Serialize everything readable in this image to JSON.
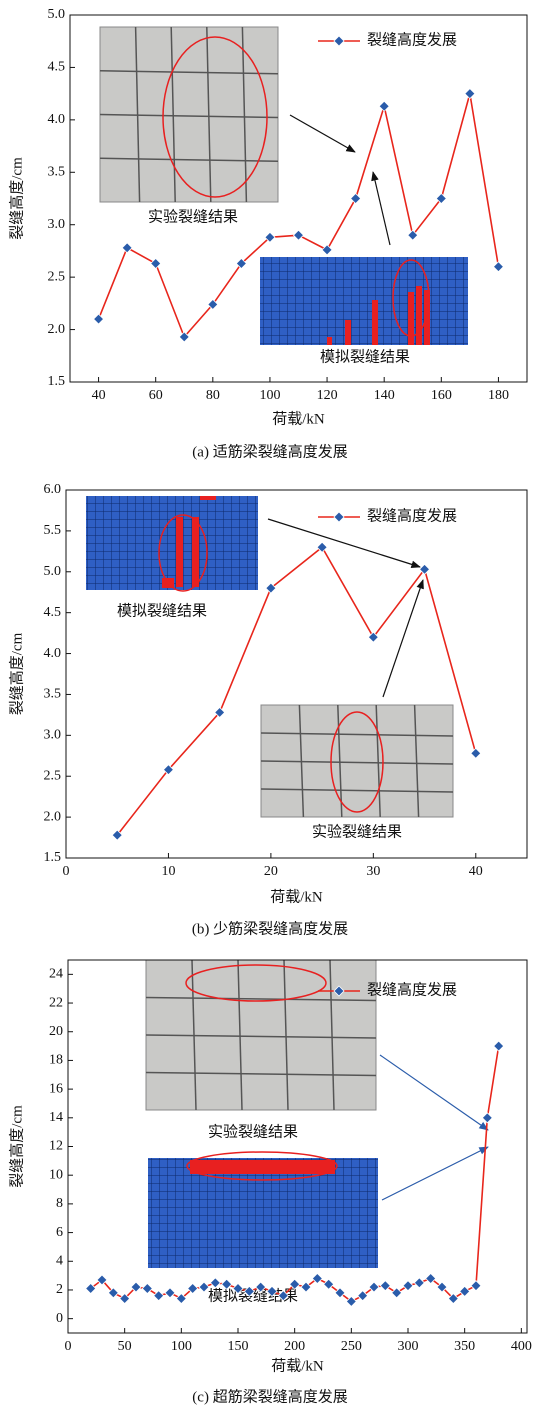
{
  "chart_data": [
    {
      "type": "line",
      "caption": "(a) 适筋梁裂缝高度发展",
      "xlabel": "荷载/kN",
      "ylabel": "裂缝高度/cm",
      "annotations": [
        "实验裂缝结果",
        "模拟裂缝结果"
      ],
      "x": [
        40,
        50,
        60,
        70,
        80,
        90,
        100,
        110,
        120,
        130,
        140,
        150,
        160,
        170,
        180
      ],
      "series": [
        {
          "name": "裂缝高度发展",
          "color": "#e8261c",
          "marker_color": "#2a5caa",
          "values": [
            2.1,
            2.78,
            2.63,
            1.93,
            2.24,
            2.63,
            2.88,
            2.9,
            2.76,
            3.25,
            4.13,
            2.9,
            3.25,
            4.25,
            2.6
          ]
        }
      ],
      "xlim": [
        30,
        190
      ],
      "xticks": [
        40,
        60,
        80,
        100,
        120,
        140,
        160,
        180
      ],
      "ylim": [
        1.5,
        5.0
      ],
      "yticks": [
        1.5,
        {
          "value": 2,
          "label": "2.0"
        },
        2.5,
        {
          "value": 3,
          "label": "3.0"
        },
        3.5,
        {
          "value": 4,
          "label": "4.0"
        },
        4.5,
        {
          "value": 5,
          "label": "5.0"
        }
      ]
    },
    {
      "type": "line",
      "caption": "(b) 少筋梁裂缝高度发展",
      "xlabel": "荷载/kN",
      "ylabel": "裂缝高度/cm",
      "annotations": [
        "模拟裂缝结果",
        "实验裂缝结果"
      ],
      "x": [
        5,
        10,
        15,
        20,
        25,
        30,
        35,
        40
      ],
      "series": [
        {
          "name": "裂缝高度发展",
          "color": "#e8261c",
          "marker_color": "#2a5caa",
          "values": [
            1.78,
            2.58,
            3.28,
            4.8,
            5.3,
            4.2,
            5.03,
            2.78
          ]
        }
      ],
      "xlim": [
        0,
        45
      ],
      "xticks": [
        0,
        10,
        20,
        30,
        40
      ],
      "ylim": [
        1.5,
        6.0
      ],
      "yticks": [
        1.5,
        {
          "value": 2,
          "label": "2.0"
        },
        2.5,
        {
          "value": 3,
          "label": "3.0"
        },
        3.5,
        {
          "value": 4,
          "label": "4.0"
        },
        4.5,
        {
          "value": 5,
          "label": "5.0"
        },
        5.5,
        {
          "value": 6,
          "label": "6.0"
        }
      ]
    },
    {
      "type": "line",
      "caption": "(c) 超筋梁裂缝高度发展",
      "xlabel": "荷载/kN",
      "ylabel": "裂缝高度/cm",
      "annotations": [
        "实验裂缝结果",
        "模拟裂缝结果"
      ],
      "x": [
        20,
        30,
        40,
        50,
        60,
        70,
        80,
        90,
        100,
        110,
        120,
        130,
        140,
        150,
        160,
        170,
        180,
        190,
        200,
        210,
        220,
        230,
        240,
        250,
        260,
        270,
        280,
        290,
        300,
        310,
        320,
        330,
        340,
        350,
        360,
        370,
        380
      ],
      "series": [
        {
          "name": "裂缝高度发展",
          "color": "#e8261c",
          "marker_color": "#2a5caa",
          "values": [
            2.1,
            2.7,
            1.8,
            1.4,
            2.2,
            2.1,
            1.6,
            1.8,
            1.4,
            2.1,
            2.2,
            2.5,
            2.4,
            2.1,
            1.9,
            2.2,
            1.9,
            1.6,
            2.4,
            2.2,
            2.8,
            2.4,
            1.8,
            1.2,
            1.6,
            2.2,
            2.3,
            1.8,
            2.3,
            2.5,
            2.8,
            2.2,
            1.4,
            1.9,
            2.3,
            14,
            19
          ]
        }
      ],
      "xlim": [
        0,
        405
      ],
      "xticks": [
        0,
        50,
        100,
        150,
        200,
        250,
        300,
        350,
        400
      ],
      "ylim": [
        -1,
        25
      ],
      "yticks": [
        0,
        2,
        4,
        6,
        8,
        10,
        12,
        14,
        16,
        18,
        20,
        22,
        24
      ]
    }
  ]
}
